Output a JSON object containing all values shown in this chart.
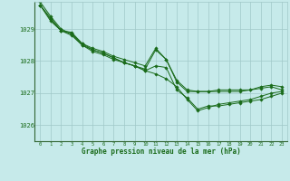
{
  "bg_color": "#c6eaea",
  "grid_color": "#a0c8c8",
  "line_color": "#1a6b1a",
  "marker_color": "#1a6b1a",
  "xlabel": "Graphe pression niveau de la mer (hPa)",
  "xlabel_color": "#1a6b1a",
  "ylabel_ticks": [
    1026,
    1027,
    1028,
    1029
  ],
  "xticks": [
    0,
    1,
    2,
    3,
    4,
    5,
    6,
    7,
    8,
    9,
    10,
    11,
    12,
    13,
    14,
    15,
    16,
    17,
    18,
    19,
    20,
    21,
    22,
    23
  ],
  "xlim": [
    -0.5,
    23.5
  ],
  "ylim": [
    1025.5,
    1029.85
  ],
  "series": [
    [
      1029.75,
      1029.35,
      1028.95,
      1028.9,
      1028.55,
      1028.4,
      1028.3,
      1028.15,
      1028.05,
      1027.95,
      1027.85,
      1028.4,
      1028.05,
      1027.35,
      1027.05,
      1027.05,
      1027.05,
      1027.05,
      1027.05,
      1027.05,
      1027.1,
      1027.15,
      1027.2,
      1027.1
    ],
    [
      1029.75,
      1029.3,
      1028.95,
      1028.85,
      1028.5,
      1028.35,
      1028.25,
      1028.1,
      1027.95,
      1027.85,
      1027.75,
      1028.35,
      1028.05,
      1027.4,
      1027.1,
      1027.05,
      1027.05,
      1027.1,
      1027.1,
      1027.1,
      1027.1,
      1027.2,
      1027.25,
      1027.2
    ],
    [
      1029.75,
      1029.25,
      1028.95,
      1028.8,
      1028.5,
      1028.3,
      1028.2,
      1028.05,
      1027.95,
      1027.85,
      1027.7,
      1027.85,
      1027.8,
      1027.1,
      1026.85,
      1026.5,
      1026.6,
      1026.6,
      1026.65,
      1026.7,
      1026.75,
      1026.8,
      1026.9,
      1027.0
    ],
    [
      1029.85,
      1029.4,
      1029.0,
      1028.85,
      1028.55,
      1028.35,
      1028.25,
      1028.1,
      1027.95,
      1027.85,
      1027.7,
      1027.6,
      1027.45,
      1027.2,
      1026.8,
      1026.45,
      1026.55,
      1026.65,
      1026.7,
      1026.75,
      1026.8,
      1026.9,
      1027.0,
      1027.05
    ]
  ]
}
